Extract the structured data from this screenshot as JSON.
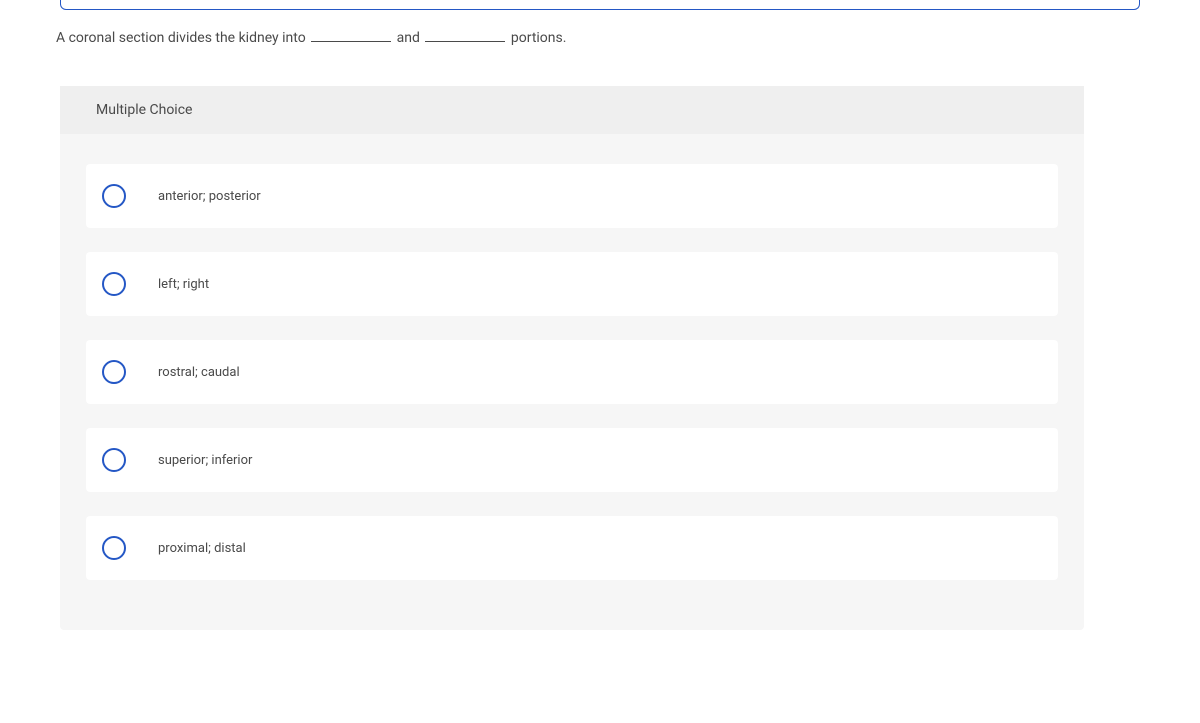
{
  "question": {
    "text_part1": "A coronal section divides the kidney into",
    "text_middle": "and",
    "text_end": "portions."
  },
  "section_header": "Multiple Choice",
  "options": [
    "anterior; posterior",
    "left; right",
    "rostral; caudal",
    "superior; inferior",
    "proximal; distal"
  ],
  "colors": {
    "frame_border": "#2457c5",
    "radio_border": "#2457c5",
    "container_bg": "#f6f6f6",
    "header_bg": "#efefef",
    "option_bg": "#ffffff",
    "text_color": "#4a4a4a"
  }
}
